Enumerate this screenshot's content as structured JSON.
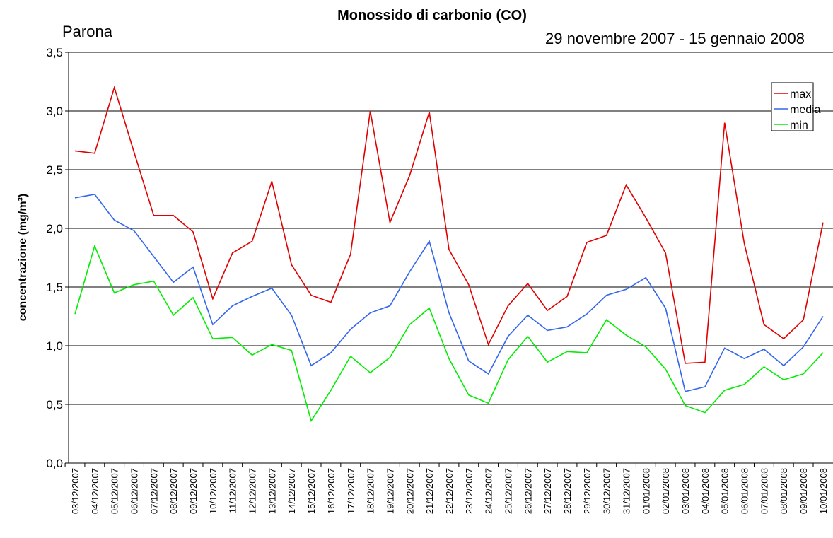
{
  "chart_data": {
    "type": "line",
    "title": "Monossido di carbonio (CO)",
    "subtitle": "29 novembre 2007 - 15 gennaio 2008",
    "station": "Parona",
    "y_label": "concentrazione (mg/m³)",
    "categories": [
      "03/12/2007",
      "04/12/2007",
      "05/12/2007",
      "06/12/2007",
      "07/12/2007",
      "08/12/2007",
      "09/12/2007",
      "10/12/2007",
      "11/12/2007",
      "12/12/2007",
      "13/12/2007",
      "14/12/2007",
      "15/12/2007",
      "16/12/2007",
      "17/12/2007",
      "18/12/2007",
      "19/12/2007",
      "20/12/2007",
      "21/12/2007",
      "22/12/2007",
      "23/12/2007",
      "24/12/2007",
      "25/12/2007",
      "26/12/2007",
      "27/12/2007",
      "28/12/2007",
      "29/12/2007",
      "30/12/2007",
      "31/12/2007",
      "01/01/2008",
      "02/01/2008",
      "03/01/2008",
      "04/01/2008",
      "05/01/2008",
      "06/01/2008",
      "07/01/2008",
      "08/01/2008",
      "09/01/2008",
      "10/01/2008"
    ],
    "series": [
      {
        "name": "max",
        "color": "#e00000",
        "values": [
          2.66,
          2.64,
          3.2,
          2.65,
          2.11,
          2.11,
          1.97,
          1.4,
          1.79,
          1.89,
          2.4,
          1.69,
          1.43,
          1.37,
          1.78,
          3.0,
          2.05,
          2.45,
          2.99,
          1.82,
          1.52,
          1.01,
          1.34,
          1.53,
          1.3,
          1.42,
          1.88,
          1.94,
          2.37,
          2.09,
          1.79,
          0.85,
          0.86,
          2.9,
          1.87,
          1.18,
          1.06,
          1.22,
          2.05
        ]
      },
      {
        "name": "media",
        "color": "#3366ee",
        "values": [
          2.26,
          2.29,
          2.07,
          1.98,
          1.76,
          1.54,
          1.67,
          1.18,
          1.34,
          1.42,
          1.49,
          1.26,
          0.83,
          0.94,
          1.14,
          1.28,
          1.34,
          1.63,
          1.89,
          1.28,
          0.87,
          0.76,
          1.08,
          1.26,
          1.13,
          1.16,
          1.27,
          1.43,
          1.48,
          1.58,
          1.32,
          0.61,
          0.65,
          0.98,
          0.89,
          0.97,
          0.83,
          0.99,
          1.25
        ]
      },
      {
        "name": "min",
        "color": "#00ee00",
        "values": [
          1.27,
          1.85,
          1.45,
          1.52,
          1.55,
          1.26,
          1.41,
          1.06,
          1.07,
          0.92,
          1.01,
          0.96,
          0.36,
          0.62,
          0.91,
          0.77,
          0.9,
          1.18,
          1.32,
          0.89,
          0.58,
          0.51,
          0.88,
          1.08,
          0.86,
          0.95,
          0.94,
          1.22,
          1.09,
          0.99,
          0.8,
          0.49,
          0.43,
          0.62,
          0.67,
          0.82,
          0.71,
          0.76,
          0.94
        ]
      }
    ],
    "ylim": [
      0,
      3.5
    ],
    "yticks": [
      {
        "value": 0,
        "label": "0,0"
      },
      {
        "value": 0.5,
        "label": "0,5"
      },
      {
        "value": 1,
        "label": "1,0"
      },
      {
        "value": 1.5,
        "label": "1,5"
      },
      {
        "value": 2,
        "label": "2,0"
      },
      {
        "value": 2.5,
        "label": "2,5"
      },
      {
        "value": 3,
        "label": "3,0"
      },
      {
        "value": 3.5,
        "label": "3,5"
      }
    ],
    "grid": true
  }
}
